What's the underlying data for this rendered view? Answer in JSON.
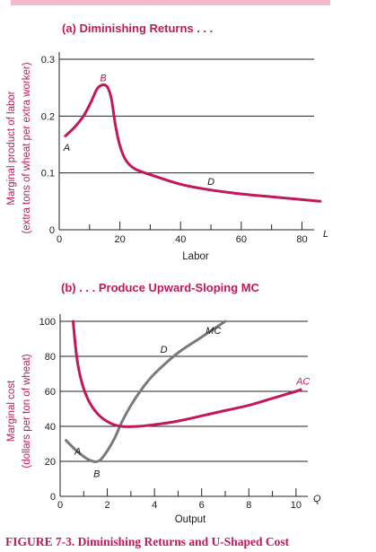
{
  "caption": "FIGURE 7-3. Diminishing Returns and U-Shaped Cost",
  "colors": {
    "accent": "#c2185b",
    "gray_curve": "#7a7a7a",
    "grid": "#222222"
  },
  "chart_data": [
    {
      "type": "line",
      "title": "(a) Diminishing Returns . . .",
      "xlabel": "Labor",
      "ylabel_line1": "Marginal product of labor",
      "ylabel_line2": "(extra tons of wheat per extra worker)",
      "axis_end_label": "L",
      "xlim": [
        0,
        84
      ],
      "ylim": [
        0,
        0.3
      ],
      "xticks": [
        0,
        20,
        40,
        60,
        80
      ],
      "yticks": [
        0,
        0.1,
        0.2,
        0.3
      ],
      "ytick_labels": [
        "0",
        "0.1",
        "0.2",
        "0.3"
      ],
      "grid": "horizontal",
      "series": [
        {
          "color": "#c2185b",
          "x": [
            2,
            5,
            8,
            10.5,
            12.5,
            14.5,
            16,
            17.2,
            18.5,
            20,
            22,
            25,
            30,
            40,
            50,
            60,
            70,
            80,
            86
          ],
          "y": [
            0.165,
            0.18,
            0.2,
            0.225,
            0.248,
            0.255,
            0.25,
            0.23,
            0.185,
            0.148,
            0.122,
            0.107,
            0.097,
            0.08,
            0.07,
            0.063,
            0.058,
            0.053,
            0.05
          ]
        }
      ],
      "annotations": [
        {
          "text": "A",
          "x": 2.5,
          "y": 0.145
        },
        {
          "text": "B",
          "x": 14.5,
          "y": 0.268
        },
        {
          "text": "D",
          "x": 50,
          "y": 0.085
        }
      ]
    },
    {
      "type": "line",
      "title": "(b) . . . Produce Upward-Sloping MC",
      "xlabel": "Output",
      "ylabel_line1": "Marginal cost",
      "ylabel_line2": "(dollars per ton of wheat)",
      "axis_end_label": "Q",
      "xlim": [
        0,
        10.5
      ],
      "ylim": [
        0,
        100
      ],
      "xticks": [
        0,
        2,
        4,
        6,
        8,
        10
      ],
      "yticks": [
        0,
        20,
        40,
        60,
        80,
        100
      ],
      "grid": "horizontal",
      "series": [
        {
          "name": "MC",
          "color": "#7a7a7a",
          "x": [
            0.25,
            0.7,
            1.2,
            1.6,
            1.9,
            2.3,
            2.6,
            3,
            3.5,
            4,
            5,
            6,
            7
          ],
          "y": [
            32,
            26,
            21,
            20,
            24,
            33,
            42,
            52,
            62,
            70,
            82,
            91,
            100
          ]
        },
        {
          "name": "AC",
          "color": "#c2185b",
          "x": [
            0.55,
            0.7,
            0.9,
            1.2,
            1.6,
            2.1,
            2.6,
            3.3,
            4,
            5,
            6,
            7,
            8,
            9,
            10,
            10.2
          ],
          "y": [
            100,
            80,
            66,
            55,
            47,
            42,
            40,
            40,
            41,
            43,
            46,
            49,
            52,
            56,
            60,
            61
          ]
        }
      ],
      "annotations": [
        {
          "text": "MC",
          "x": 6.5,
          "y": 95,
          "series": "MC"
        },
        {
          "text": "AC",
          "x": 10.3,
          "y": 66,
          "series": "AC"
        },
        {
          "text": "D",
          "x": 4.4,
          "y": 84
        },
        {
          "text": "A",
          "x": 0.75,
          "y": 26
        },
        {
          "text": "B",
          "x": 1.55,
          "y": 13
        }
      ]
    }
  ]
}
